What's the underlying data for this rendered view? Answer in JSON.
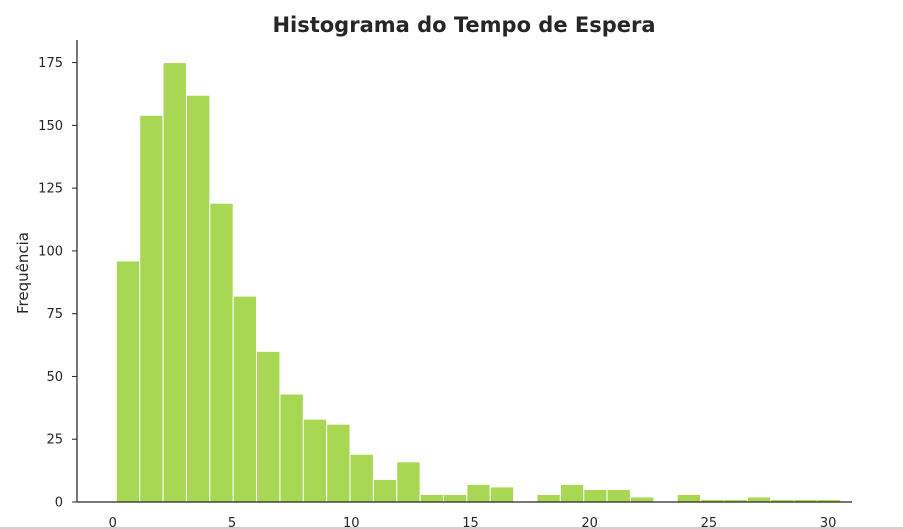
{
  "chart_data": {
    "type": "bar",
    "title": "Histograma do Tempo de Espera",
    "xlabel": "",
    "ylabel": "Frequência",
    "xlim": [
      -1.5,
      31.0
    ],
    "ylim": [
      0,
      184
    ],
    "x_ticks": [
      0,
      5,
      10,
      15,
      20,
      25,
      30
    ],
    "y_ticks": [
      0,
      25,
      50,
      75,
      100,
      125,
      150,
      175
    ],
    "grid": false,
    "bar_color": "#a8d853",
    "bar_edge_color": "#ffffff",
    "bins": [
      {
        "x0": 0.15,
        "x1": 1.13,
        "value": 96
      },
      {
        "x0": 1.13,
        "x1": 2.11,
        "value": 154
      },
      {
        "x0": 2.11,
        "x1": 3.09,
        "value": 175
      },
      {
        "x0": 3.09,
        "x1": 4.07,
        "value": 162
      },
      {
        "x0": 4.07,
        "x1": 5.05,
        "value": 119
      },
      {
        "x0": 5.05,
        "x1": 6.03,
        "value": 82
      },
      {
        "x0": 6.03,
        "x1": 7.01,
        "value": 60
      },
      {
        "x0": 7.01,
        "x1": 7.99,
        "value": 43
      },
      {
        "x0": 7.99,
        "x1": 8.97,
        "value": 33
      },
      {
        "x0": 8.97,
        "x1": 9.95,
        "value": 31
      },
      {
        "x0": 9.95,
        "x1": 10.93,
        "value": 19
      },
      {
        "x0": 10.93,
        "x1": 11.91,
        "value": 9
      },
      {
        "x0": 11.91,
        "x1": 12.89,
        "value": 16
      },
      {
        "x0": 12.89,
        "x1": 13.87,
        "value": 3
      },
      {
        "x0": 13.87,
        "x1": 14.85,
        "value": 3
      },
      {
        "x0": 14.85,
        "x1": 15.83,
        "value": 7
      },
      {
        "x0": 15.83,
        "x1": 16.81,
        "value": 6
      },
      {
        "x0": 16.81,
        "x1": 17.79,
        "value": 0
      },
      {
        "x0": 17.79,
        "x1": 18.77,
        "value": 3
      },
      {
        "x0": 18.77,
        "x1": 19.75,
        "value": 7
      },
      {
        "x0": 19.75,
        "x1": 20.73,
        "value": 5
      },
      {
        "x0": 20.73,
        "x1": 21.71,
        "value": 5
      },
      {
        "x0": 21.71,
        "x1": 22.69,
        "value": 2
      },
      {
        "x0": 22.69,
        "x1": 23.67,
        "value": 0
      },
      {
        "x0": 23.67,
        "x1": 24.65,
        "value": 3
      },
      {
        "x0": 24.65,
        "x1": 25.63,
        "value": 1
      },
      {
        "x0": 25.63,
        "x1": 26.61,
        "value": 1
      },
      {
        "x0": 26.61,
        "x1": 27.59,
        "value": 2
      },
      {
        "x0": 27.59,
        "x1": 28.57,
        "value": 1
      },
      {
        "x0": 28.57,
        "x1": 29.55,
        "value": 1
      },
      {
        "x0": 29.55,
        "x1": 30.53,
        "value": 1
      }
    ]
  }
}
